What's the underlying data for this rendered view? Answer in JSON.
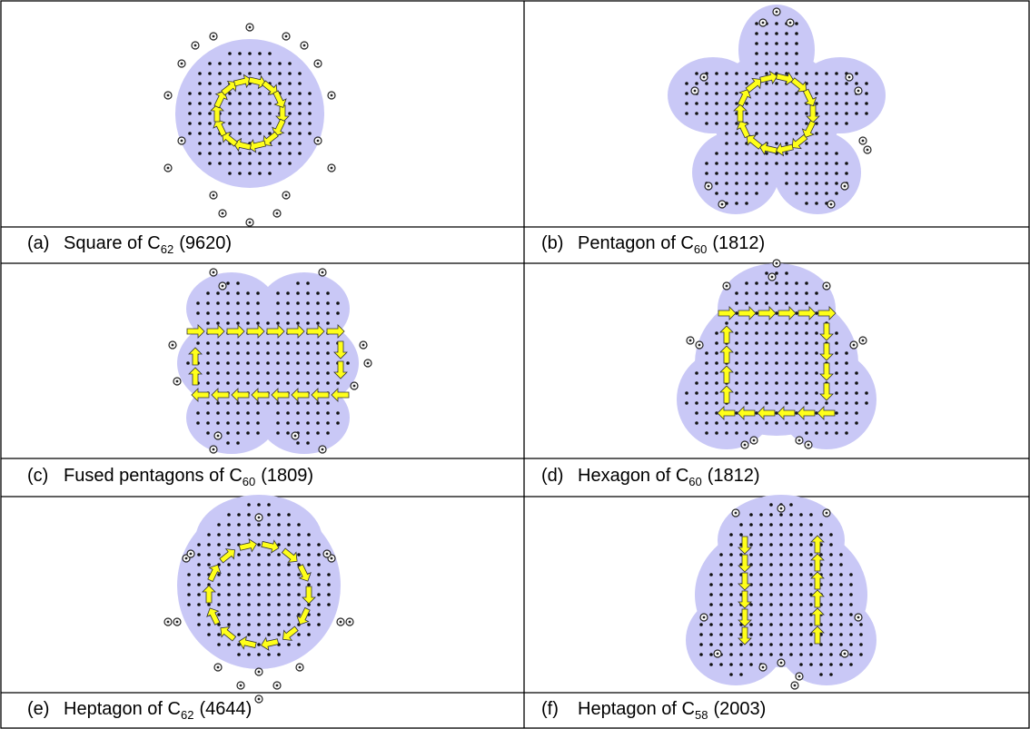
{
  "panels": [
    {
      "label": "(a)",
      "text": "Square of C",
      "sub": "62",
      "suffix": "(9620)"
    },
    {
      "label": "(b)",
      "text": "Pentagon of C",
      "sub": "60",
      "suffix": "(1812)"
    },
    {
      "label": "(c)",
      "text": "Fused pentagons of C",
      "sub": "60",
      "suffix": "(1809)"
    },
    {
      "label": "(d)",
      "text": "Hexagon of C",
      "sub": "60",
      "suffix": "(1812)"
    },
    {
      "label": "(e)",
      "text": "Heptagon of C",
      "sub": "62",
      "suffix": "(4644)"
    },
    {
      "label": "(f)",
      "text": "Heptagon of C",
      "sub": "58",
      "suffix": "(2003)"
    }
  ]
}
